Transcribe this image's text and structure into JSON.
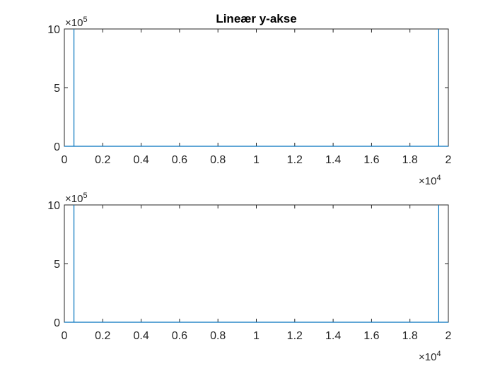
{
  "figure": {
    "background": "#ffffff"
  },
  "chart_data": [
    {
      "type": "line",
      "title": "Lineær y-akse",
      "xlabel": "",
      "ylabel": "",
      "xlim": [
        0,
        20000
      ],
      "ylim": [
        0,
        1000000
      ],
      "x_ticks": [
        0,
        2000,
        4000,
        6000,
        8000,
        10000,
        12000,
        14000,
        16000,
        18000,
        20000
      ],
      "x_tick_labels": [
        "0",
        "0.2",
        "0.4",
        "0.6",
        "0.8",
        "1",
        "1.2",
        "1.4",
        "1.6",
        "1.8",
        "2"
      ],
      "x_exponent_label": "×10",
      "x_exponent_power": "4",
      "y_ticks": [
        0,
        500000,
        1000000
      ],
      "y_tick_labels": [
        "0",
        "5",
        "10"
      ],
      "y_exponent_label": "×10",
      "y_exponent_power": "5",
      "grid": false,
      "line_color": "#0072bd",
      "series": [
        {
          "x": [
            0,
            500,
            500,
            500,
            19500,
            19500,
            19500,
            20000
          ],
          "y": [
            0,
            0,
            1000000,
            0,
            0,
            1000000,
            0,
            0
          ]
        }
      ]
    },
    {
      "type": "line",
      "title": "",
      "xlabel": "",
      "ylabel": "",
      "xlim": [
        0,
        20000
      ],
      "ylim": [
        0,
        1000000
      ],
      "x_ticks": [
        0,
        2000,
        4000,
        6000,
        8000,
        10000,
        12000,
        14000,
        16000,
        18000,
        20000
      ],
      "x_tick_labels": [
        "0",
        "0.2",
        "0.4",
        "0.6",
        "0.8",
        "1",
        "1.2",
        "1.4",
        "1.6",
        "1.8",
        "2"
      ],
      "x_exponent_label": "×10",
      "x_exponent_power": "4",
      "y_ticks": [
        0,
        500000,
        1000000
      ],
      "y_tick_labels": [
        "0",
        "5",
        "10"
      ],
      "y_exponent_label": "×10",
      "y_exponent_power": "5",
      "grid": false,
      "line_color": "#0072bd",
      "series": [
        {
          "x": [
            0,
            500,
            500,
            500,
            19500,
            19500,
            19500,
            20000
          ],
          "y": [
            0,
            0,
            1000000,
            0,
            0,
            1000000,
            0,
            0
          ]
        }
      ]
    }
  ]
}
